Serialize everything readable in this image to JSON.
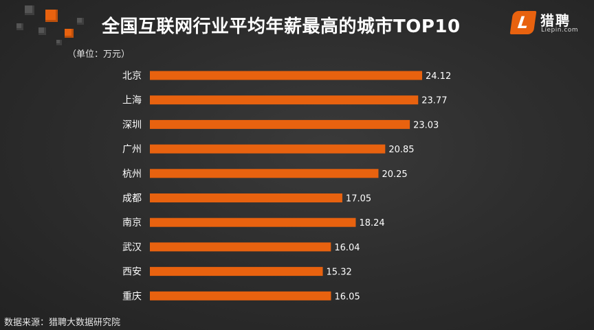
{
  "title": "全国互联网行业平均年薪最高的城市TOP10",
  "unit_note": "（单位：万元）",
  "source_note": "数据来源：猎聘大数据研究院",
  "logo": {
    "mark": "L",
    "name": "猎聘",
    "subtitle": "Liepin.com"
  },
  "colors": {
    "bar": "#e8620f",
    "background": "#2e2e2e",
    "text": "#ffffff"
  },
  "chart_data": {
    "type": "bar",
    "orientation": "horizontal",
    "title": "全国互联网行业平均年薪最高的城市TOP10",
    "unit": "（单位：万元）",
    "categories": [
      "北京",
      "上海",
      "深圳",
      "广州",
      "杭州",
      "成都",
      "南京",
      "武汉",
      "西安",
      "重庆"
    ],
    "values": [
      24.12,
      23.77,
      23.03,
      20.85,
      20.25,
      17.05,
      18.24,
      16.04,
      15.32,
      16.05
    ],
    "value_labels": [
      "24.12",
      "23.77",
      "23.03",
      "20.85",
      "20.25",
      "17.05",
      "18.24",
      "16.04",
      "15.32",
      "16.05"
    ],
    "xlim": [
      0,
      24.12
    ],
    "grid": false,
    "legend": "none"
  }
}
